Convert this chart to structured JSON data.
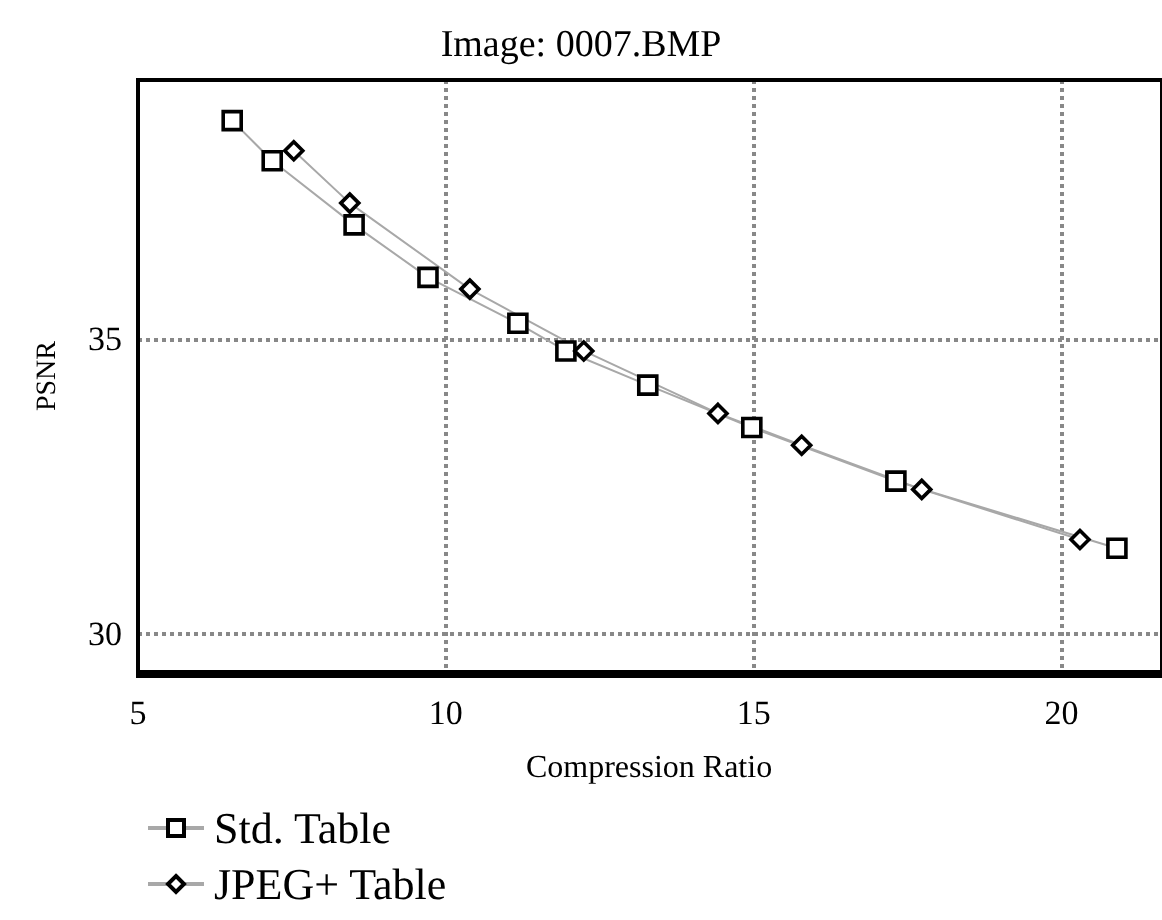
{
  "chart_data": {
    "type": "line",
    "title": "Image: 0007.BMP",
    "xlabel": "Compression Ratio",
    "ylabel": "PSNR",
    "xlim": [
      5,
      21.6
    ],
    "ylim": [
      29.35,
      39.4
    ],
    "xticks": [
      5,
      10,
      15,
      20
    ],
    "yticks": [
      30,
      35
    ],
    "grid": true,
    "legend": "bottom left",
    "line_style": "solid",
    "series": [
      {
        "name": "Std. Table",
        "color": "#000000",
        "marker": "square",
        "x": [
          6.53,
          7.18,
          8.51,
          9.71,
          11.17,
          11.95,
          13.28,
          14.97,
          17.31,
          20.9
        ],
        "values": [
          38.71,
          38.03,
          36.94,
          36.05,
          35.27,
          34.8,
          34.22,
          33.5,
          32.59,
          31.45
        ]
      },
      {
        "name": "JPEG+ Table",
        "color": "#000000",
        "marker": "diamond",
        "x": [
          7.53,
          8.44,
          10.39,
          12.24,
          14.42,
          15.78,
          17.73,
          20.3
        ],
        "values": [
          38.2,
          37.31,
          35.85,
          34.8,
          33.74,
          33.2,
          32.45,
          31.6
        ]
      }
    ]
  }
}
